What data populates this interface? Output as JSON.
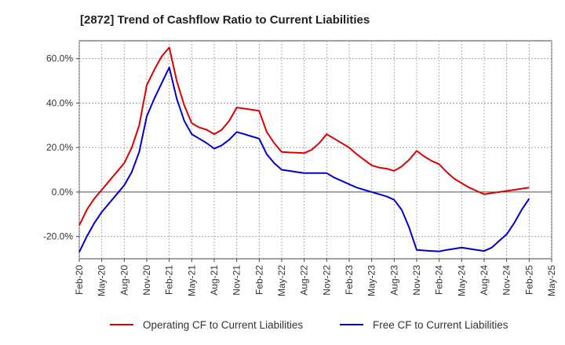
{
  "chart_data": {
    "type": "line",
    "title": "[2872]  Trend of Cashflow Ratio to Current Liabilities",
    "xlabel": "",
    "ylabel": "",
    "x_tick_labels": [
      "Feb-20",
      "May-20",
      "Aug-20",
      "Nov-20",
      "Feb-21",
      "May-21",
      "Aug-21",
      "Nov-21",
      "Feb-22",
      "May-22",
      "Aug-22",
      "Nov-22",
      "Feb-23",
      "May-23",
      "Aug-23",
      "Nov-23",
      "Feb-24",
      "May-24",
      "Aug-24",
      "Nov-24",
      "Feb-25",
      "May-25"
    ],
    "y_tick_labels": [
      "-20.0%",
      "0.0%",
      "20.0%",
      "40.0%",
      "60.0%"
    ],
    "y_ticks": [
      -20,
      0,
      20,
      40,
      60
    ],
    "ylim": [
      -30,
      68
    ],
    "x_range_months": [
      0,
      63
    ],
    "grid": true,
    "legend_position": "bottom",
    "x_month_index_note_units": "months from Feb-20",
    "series": [
      {
        "name": "Operating CF to Current Liabilities",
        "color": "#dd0000",
        "points": [
          [
            0,
            -15
          ],
          [
            1,
            -8
          ],
          [
            2,
            -3
          ],
          [
            3,
            1
          ],
          [
            4,
            5
          ],
          [
            5,
            9
          ],
          [
            6,
            13
          ],
          [
            7,
            20
          ],
          [
            8,
            30
          ],
          [
            9,
            48
          ],
          [
            10,
            55
          ],
          [
            11,
            61
          ],
          [
            12,
            65
          ],
          [
            13,
            50
          ],
          [
            14,
            39
          ],
          [
            15,
            31
          ],
          [
            16,
            29
          ],
          [
            17,
            28
          ],
          [
            18,
            26
          ],
          [
            19,
            28
          ],
          [
            20,
            32
          ],
          [
            21,
            38
          ],
          [
            22,
            37.5
          ],
          [
            23,
            37
          ],
          [
            24,
            36.5
          ],
          [
            25,
            27
          ],
          [
            26,
            22
          ],
          [
            27,
            18
          ],
          [
            28,
            17.8
          ],
          [
            29,
            17.7
          ],
          [
            30,
            17.5
          ],
          [
            31,
            19
          ],
          [
            32,
            22
          ],
          [
            33,
            26
          ],
          [
            34,
            24
          ],
          [
            35,
            22
          ],
          [
            36,
            20
          ],
          [
            37,
            17
          ],
          [
            38,
            14.5
          ],
          [
            39,
            12
          ],
          [
            40,
            11
          ],
          [
            41,
            10.5
          ],
          [
            42,
            9.5
          ],
          [
            43,
            11.5
          ],
          [
            44,
            14.5
          ],
          [
            45,
            18.5
          ],
          [
            46,
            16
          ],
          [
            47,
            14
          ],
          [
            48,
            12.5
          ],
          [
            49,
            9
          ],
          [
            50,
            6
          ],
          [
            51,
            4
          ],
          [
            52,
            2
          ],
          [
            53,
            0.5
          ],
          [
            54,
            -1
          ],
          [
            55,
            -0.5
          ],
          [
            56,
            0
          ],
          [
            57,
            0.5
          ],
          [
            58,
            1
          ],
          [
            59,
            1.5
          ],
          [
            60,
            2
          ]
        ]
      },
      {
        "name": "Free CF to Current Liabilities",
        "color": "#0000cc",
        "points": [
          [
            0,
            -27
          ],
          [
            1,
            -20
          ],
          [
            2,
            -14
          ],
          [
            3,
            -9
          ],
          [
            4,
            -5
          ],
          [
            5,
            -1
          ],
          [
            6,
            3
          ],
          [
            7,
            9
          ],
          [
            8,
            18
          ],
          [
            9,
            34
          ],
          [
            10,
            42
          ],
          [
            11,
            49
          ],
          [
            12,
            56
          ],
          [
            13,
            42
          ],
          [
            14,
            32
          ],
          [
            15,
            26
          ],
          [
            16,
            24
          ],
          [
            17,
            22
          ],
          [
            18,
            19.5
          ],
          [
            19,
            21
          ],
          [
            20,
            23.5
          ],
          [
            21,
            27
          ],
          [
            22,
            26
          ],
          [
            23,
            25
          ],
          [
            24,
            24
          ],
          [
            25,
            17
          ],
          [
            26,
            13
          ],
          [
            27,
            10
          ],
          [
            28,
            9.5
          ],
          [
            29,
            9
          ],
          [
            30,
            8.5
          ],
          [
            31,
            8.5
          ],
          [
            32,
            8.5
          ],
          [
            33,
            8.5
          ],
          [
            34,
            6.5
          ],
          [
            35,
            5
          ],
          [
            36,
            3.5
          ],
          [
            37,
            2
          ],
          [
            38,
            1
          ],
          [
            39,
            0
          ],
          [
            40,
            -1
          ],
          [
            41,
            -2
          ],
          [
            42,
            -3.5
          ],
          [
            43,
            -8
          ],
          [
            44,
            -16
          ],
          [
            45,
            -26
          ],
          [
            46,
            -26.3
          ],
          [
            47,
            -26.5
          ],
          [
            48,
            -26.7
          ],
          [
            49,
            -26
          ],
          [
            50,
            -25.5
          ],
          [
            51,
            -25
          ],
          [
            52,
            -25.5
          ],
          [
            53,
            -26
          ],
          [
            54,
            -26.5
          ],
          [
            55,
            -25
          ],
          [
            56,
            -22
          ],
          [
            57,
            -19
          ],
          [
            58,
            -14
          ],
          [
            59,
            -8
          ],
          [
            60,
            -3
          ]
        ]
      }
    ]
  }
}
